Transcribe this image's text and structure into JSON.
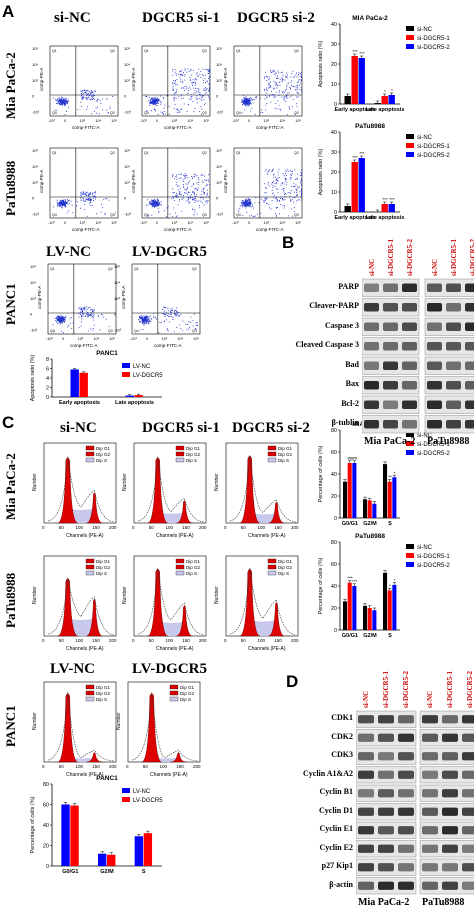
{
  "panels": {
    "A": "A",
    "B": "B",
    "C": "C",
    "D": "D"
  },
  "flow": {
    "columns": [
      "si-NC",
      "DGCR5 si-1",
      "DGCR5 si-2"
    ],
    "rows": [
      "Mia PaCa-2",
      "PaTu8988"
    ],
    "panc1_columns": [
      "LV-NC",
      "LV-DGCR5"
    ],
    "panc1_row": "PANC1",
    "x_axis": "comp-FITC-A",
    "y_axis": "comp-PE-A",
    "quadrants": [
      "Q1",
      "Q2",
      "Q3",
      "Q4"
    ]
  },
  "cycle": {
    "columns": [
      "si-NC",
      "DGCR5 si-1",
      "DGCR5 si-2"
    ],
    "rows": [
      "Mia PaCa-2",
      "PaTu8988"
    ],
    "panc1_columns": [
      "LV-NC",
      "LV-DGCR5"
    ],
    "panc1_row": "PANC1",
    "x_axis": "Channels (PE-A)",
    "y_axis": "Number",
    "legend": [
      "Dip G1",
      "Dip G2",
      "Dip S"
    ]
  },
  "western_B": {
    "cols": [
      "si-NC",
      "si-DGCR5-1",
      "si-DGCR5-2",
      "si-NC",
      "si-DGCR5-1",
      "si-DGCR5-2"
    ],
    "rows": [
      "PARP",
      "Cleaver-PARP",
      "Caspase 3",
      "Cleaved Caspase 3",
      "Bad",
      "Bax",
      "Bcl-2",
      "β-tublin"
    ],
    "groups": [
      "Mia PaCa-2",
      "PaTu8988"
    ]
  },
  "western_D": {
    "cols": [
      "si-NC",
      "si-DGCR5-1",
      "si-DGCR5-2",
      "si-NC",
      "si-DGCR5-1",
      "si-DGCR5-2"
    ],
    "rows": [
      "CDK1",
      "CDK2",
      "CDK3",
      "Cyclin A1&A2",
      "Cyclin B1",
      "Cyclin D1",
      "Cyclin E1",
      "Cyclin E2",
      "p27 Kip1",
      "β-actin"
    ],
    "groups": [
      "Mia PaCa-2",
      "PaTu8988"
    ]
  },
  "chart_data": [
    {
      "type": "bar",
      "title": "MIA PaCa-2",
      "ylabel": "Apoptosis ratio (%)",
      "ylim": [
        0,
        40
      ],
      "yticks": [
        0,
        10,
        20,
        30,
        40
      ],
      "categories": [
        "Early apoptosis",
        "Late apoptosis"
      ],
      "series": [
        {
          "name": "si-NC",
          "color": "#000000",
          "values": [
            4,
            0.5
          ]
        },
        {
          "name": "si-DGCR5-1",
          "color": "#ff0000",
          "values": [
            24,
            4
          ]
        },
        {
          "name": "si-DGCR5-2",
          "color": "#0000ff",
          "values": [
            23,
            4.5
          ]
        }
      ],
      "annotations": [
        "***",
        "***",
        "*",
        "*"
      ],
      "legend": "top-right"
    },
    {
      "type": "bar",
      "title": "PaTu8988",
      "ylabel": "Apoptosis ratio (%)",
      "ylim": [
        0,
        40
      ],
      "yticks": [
        0,
        10,
        20,
        30,
        40
      ],
      "categories": [
        "Early apoptosis",
        "Late apoptosis"
      ],
      "series": [
        {
          "name": "si-NC",
          "color": "#000000",
          "values": [
            3,
            0
          ]
        },
        {
          "name": "si-DGCR5-1",
          "color": "#ff0000",
          "values": [
            25,
            4
          ]
        },
        {
          "name": "si-DGCR5-2",
          "color": "#0000ff",
          "values": [
            27,
            4
          ]
        }
      ],
      "annotations": [
        "***",
        "***",
        "***",
        "***"
      ],
      "legend": "top-right"
    },
    {
      "type": "bar",
      "title": "PANC1",
      "ylabel": "Apoptosis ratio (%)",
      "ylim": [
        0,
        8
      ],
      "yticks": [
        0,
        2,
        4,
        6,
        8
      ],
      "categories": [
        "Early apoptosis",
        "Late apoptosis"
      ],
      "series": [
        {
          "name": "LV-NC",
          "color": "#0000ff",
          "values": [
            5.8,
            0.3
          ]
        },
        {
          "name": "LV-DGCR5",
          "color": "#ff0000",
          "values": [
            5.1,
            0.4
          ]
        }
      ],
      "legend": "top-right"
    },
    {
      "type": "bar",
      "title": "MIA PaCa-2",
      "ylabel": "Percentage of cells (%)",
      "ylim": [
        0,
        80
      ],
      "yticks": [
        0,
        20,
        40,
        60,
        80
      ],
      "categories": [
        "G0/G1",
        "G2/M",
        "S"
      ],
      "series": [
        {
          "name": "si-NC",
          "color": "#000000",
          "values": [
            33,
            17,
            49
          ]
        },
        {
          "name": "si-DGCR5-1",
          "color": "#ff0000",
          "values": [
            50,
            16,
            33
          ]
        },
        {
          "name": "si-DGCR5-2",
          "color": "#0000ff",
          "values": [
            50,
            13,
            37
          ]
        }
      ],
      "annotations": [
        "##",
        "##",
        "**",
        "*"
      ],
      "legend": "top-right"
    },
    {
      "type": "bar",
      "title": "PaTu8988",
      "ylabel": "Percentage of cells (%)",
      "ylim": [
        0,
        80
      ],
      "yticks": [
        0,
        20,
        40,
        60,
        80
      ],
      "categories": [
        "G0/G1",
        "G2/M",
        "S"
      ],
      "series": [
        {
          "name": "si-NC",
          "color": "#000000",
          "values": [
            26,
            22,
            52
          ]
        },
        {
          "name": "si-DGCR5-1",
          "color": "#ff0000",
          "values": [
            43,
            20,
            36
          ]
        },
        {
          "name": "si-DGCR5-2",
          "color": "#0000ff",
          "values": [
            40,
            18,
            41
          ]
        }
      ],
      "annotations": [
        "***",
        "***",
        "*",
        "*"
      ],
      "legend": "top-right"
    },
    {
      "type": "bar",
      "title": "PANC1",
      "ylabel": "Percentage of cells (%)",
      "ylim": [
        0,
        80
      ],
      "yticks": [
        0,
        20,
        40,
        60,
        80
      ],
      "categories": [
        "G0/G1",
        "G2/M",
        "S"
      ],
      "series": [
        {
          "name": "LV-NC",
          "color": "#0000ff",
          "values": [
            60,
            12,
            29
          ]
        },
        {
          "name": "LV-DGCR5",
          "color": "#ff0000",
          "values": [
            59,
            11,
            32
          ]
        }
      ],
      "legend": "top-right"
    }
  ]
}
